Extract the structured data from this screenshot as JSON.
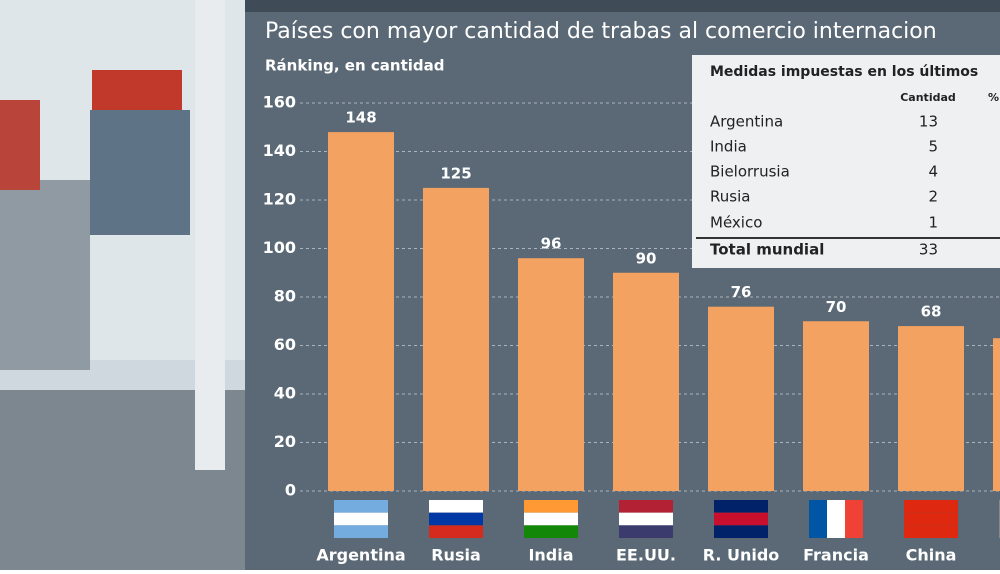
{
  "chart_data": {
    "type": "bar",
    "title": "Países con mayor cantidad de trabas al comercio internacion",
    "subtitle": "Ránking, en cantidad",
    "categories": [
      "Argentina",
      "Rusia",
      "India",
      "EE.UU.",
      "R. Unido",
      "Francia",
      "China",
      null
    ],
    "values": [
      148,
      125,
      96,
      90,
      76,
      70,
      68,
      63
    ],
    "value_labels": [
      "148",
      "125",
      "96",
      "90",
      "76",
      "70",
      "68",
      null
    ],
    "color": "#f4a261",
    "ylim": [
      0,
      160
    ],
    "yticks": [
      0,
      20,
      40,
      60,
      80,
      100,
      120,
      140,
      160
    ],
    "grid": true
  },
  "inset": {
    "title": "Medidas impuestas en los últimos",
    "columns": [
      "Cantidad",
      "%"
    ],
    "rows": [
      [
        "Argentina",
        13
      ],
      [
        "India",
        5
      ],
      [
        "Bielorrusia",
        4
      ],
      [
        "Rusia",
        2
      ],
      [
        "México",
        1
      ],
      [
        "Total mundial",
        33
      ]
    ]
  }
}
